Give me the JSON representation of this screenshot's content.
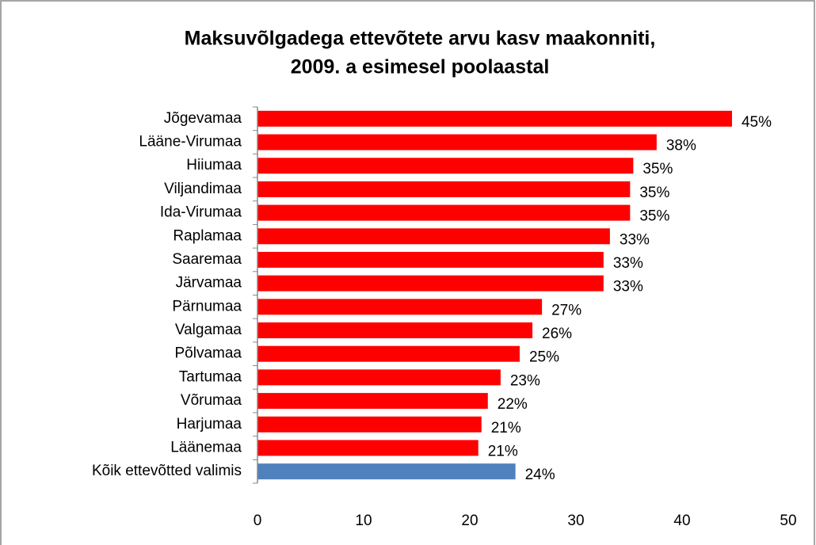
{
  "chart_data": {
    "type": "bar",
    "orientation": "horizontal",
    "title": [
      "Maksuvõlgadega ettevõtete arvu kasv maakonniti,",
      "2009. a esimesel poolaastal"
    ],
    "categories": [
      "Jõgevamaa",
      "Lääne-Virumaa",
      "Hiiumaa",
      "Viljandimaa",
      "Ida-Virumaa",
      "Raplamaa",
      "Saaremaa",
      "Järvamaa",
      "Pärnumaa",
      "Valgamaa",
      "Põlvamaa",
      "Tartumaa",
      "Võrumaa",
      "Harjumaa",
      "Läänemaa",
      "Kõik ettevõtted valimis"
    ],
    "values": [
      44.7,
      37.6,
      35.4,
      35.1,
      35.1,
      33.2,
      32.6,
      32.6,
      26.8,
      25.9,
      24.7,
      22.9,
      21.7,
      21.1,
      20.8,
      24.3
    ],
    "value_labels": [
      "45%",
      "38%",
      "35%",
      "35%",
      "35%",
      "33%",
      "33%",
      "33%",
      "27%",
      "26%",
      "25%",
      "23%",
      "22%",
      "21%",
      "21%",
      "24%"
    ],
    "colors": [
      "#ff0000",
      "#ff0000",
      "#ff0000",
      "#ff0000",
      "#ff0000",
      "#ff0000",
      "#ff0000",
      "#ff0000",
      "#ff0000",
      "#ff0000",
      "#ff0000",
      "#ff0000",
      "#ff0000",
      "#ff0000",
      "#ff0000",
      "#4f81bd"
    ],
    "xlim": [
      0,
      50
    ],
    "xticks": [
      0,
      10,
      20,
      30,
      40,
      50
    ]
  }
}
